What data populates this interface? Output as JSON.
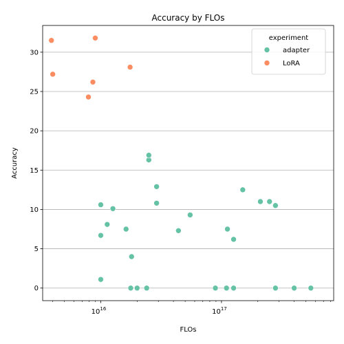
{
  "chart_data": {
    "type": "scatter",
    "title": "Accuracy by FLOs",
    "xlabel": "FLOs",
    "ylabel": "Accuracy",
    "xscale": "log",
    "xlim": [
      3300000000000000.0,
      8.5e+17
    ],
    "ylim": [
      -1.6,
      33.4
    ],
    "xticks": [
      {
        "value": 1e+16,
        "base": "10",
        "exp": "16"
      },
      {
        "value": 1e+17,
        "base": "10",
        "exp": "17"
      }
    ],
    "yticks": [
      0,
      5,
      10,
      15,
      20,
      25,
      30
    ],
    "grid": "y",
    "legend": {
      "title": "experiment",
      "placement": "top-right"
    },
    "series": [
      {
        "name": "adapter",
        "color": "#66c2a5",
        "points": [
          [
            1e+16,
            1.1
          ],
          [
            1e+16,
            6.7
          ],
          [
            1e+16,
            10.6
          ],
          [
            1.13e+16,
            8.1
          ],
          [
            1.26e+16,
            10.1
          ],
          [
            1.62e+16,
            7.5
          ],
          [
            1.77e+16,
            0.0
          ],
          [
            1.8e+16,
            4.0
          ],
          [
            2e+16,
            0.0
          ],
          [
            2.4e+16,
            0.0
          ],
          [
            2.5e+16,
            16.3
          ],
          [
            2.5e+16,
            16.9
          ],
          [
            2.9e+16,
            12.9
          ],
          [
            2.9e+16,
            10.8
          ],
          [
            4.4e+16,
            7.3
          ],
          [
            5.5e+16,
            9.3
          ],
          [
            8.9e+16,
            0.0
          ],
          [
            1.1e+17,
            0.0
          ],
          [
            1.12e+17,
            7.5
          ],
          [
            1.26e+17,
            0.0
          ],
          [
            1.26e+17,
            6.2
          ],
          [
            1.5e+17,
            12.5
          ],
          [
            2.1e+17,
            11.0
          ],
          [
            2.5e+17,
            11.0
          ],
          [
            2.8e+17,
            10.5
          ],
          [
            2.8e+17,
            0.0
          ],
          [
            4e+17,
            0.0
          ],
          [
            5.5e+17,
            0.0
          ]
        ]
      },
      {
        "name": "LoRA",
        "color": "#fc8d62",
        "points": [
          [
            3900000000000000.0,
            31.5
          ],
          [
            4000000000000000.0,
            27.2
          ],
          [
            7900000000000000.0,
            24.3
          ],
          [
            8600000000000000.0,
            26.2
          ],
          [
            9000000000000000.0,
            31.8
          ],
          [
            1.75e+16,
            28.1
          ]
        ]
      }
    ]
  }
}
